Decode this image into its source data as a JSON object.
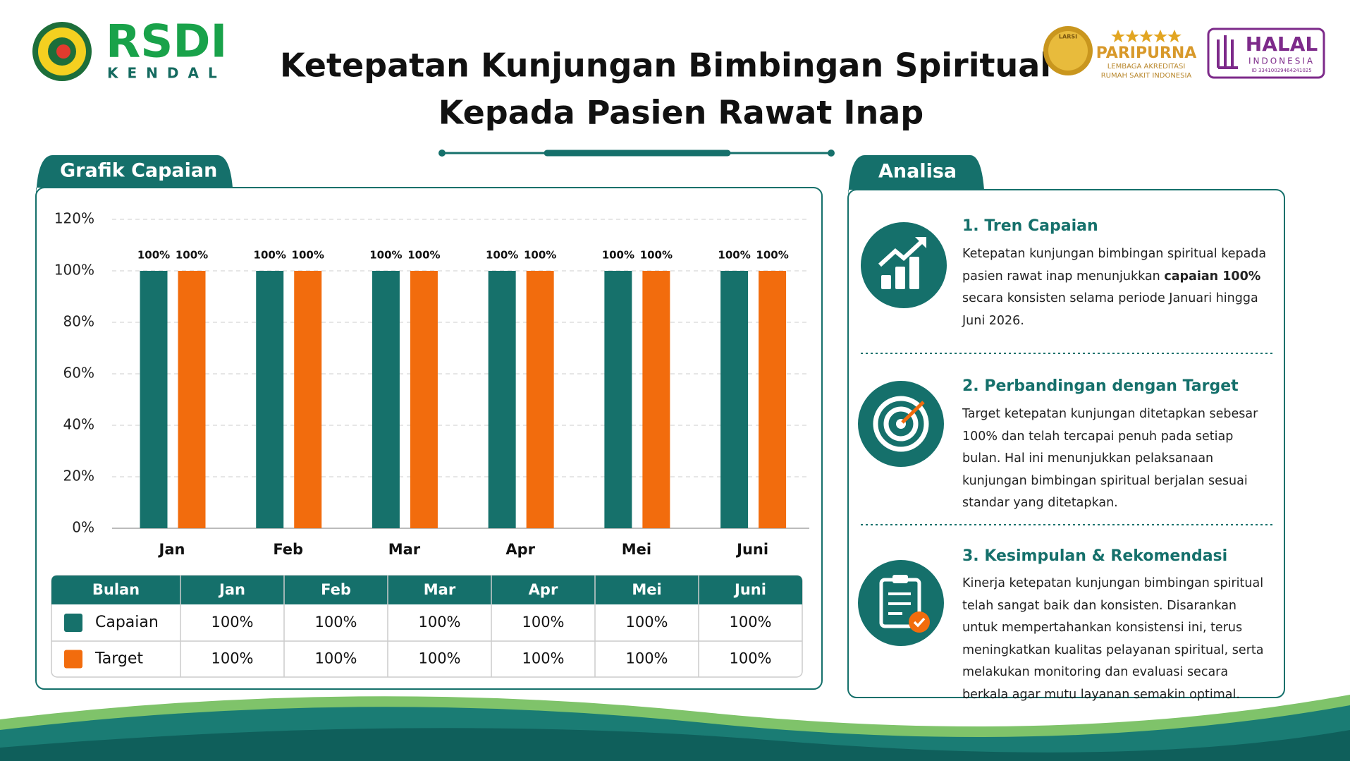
{
  "header": {
    "logo_name": "RSDI",
    "logo_city": "KENDAL",
    "title_lines": [
      "Ketepatan Kunjungan Bimbingan Spiritual",
      "Kepada Pasien Rawat Inap"
    ],
    "accreditation": {
      "seal": "LARSI",
      "level": "PARIPURNA",
      "org_lines": [
        "LEMBAGA AKREDITASI",
        "RUMAH SAKIT INDONESIA"
      ]
    },
    "halal": {
      "label": "HALAL",
      "country": "INDONESIA",
      "id": "ID 33410029464241025"
    }
  },
  "chart_data": {
    "type": "bar",
    "title": "Grafik Capaian",
    "categories": [
      "Jan",
      "Feb",
      "Mar",
      "Apr",
      "Mei",
      "Juni"
    ],
    "series": [
      {
        "name": "Capaian",
        "color": "#16716b",
        "values": [
          100,
          100,
          100,
          100,
          100,
          100
        ],
        "value_labels": [
          "100%",
          "100%",
          "100%",
          "100%",
          "100%",
          "100%"
        ]
      },
      {
        "name": "Target",
        "color": "#f26c0d",
        "values": [
          100,
          100,
          100,
          100,
          100,
          100
        ],
        "value_labels": [
          "100%",
          "100%",
          "100%",
          "100%",
          "100%",
          "100%"
        ]
      }
    ],
    "ylim": [
      0,
      120
    ],
    "yticks": [
      {
        "value": 0,
        "label": "0%"
      },
      {
        "value": 20,
        "label": "20%"
      },
      {
        "value": 40,
        "label": "40%"
      },
      {
        "value": 60,
        "label": "60%"
      },
      {
        "value": 80,
        "label": "80%"
      },
      {
        "value": 100,
        "label": "100%"
      },
      {
        "value": 120,
        "label": "120%"
      }
    ],
    "grid": true
  },
  "table": {
    "header": [
      "Bulan",
      "Jan",
      "Feb",
      "Mar",
      "Apr",
      "Mei",
      "Juni"
    ],
    "rows": [
      [
        "Capaian",
        "100%",
        "100%",
        "100%",
        "100%",
        "100%",
        "100%"
      ],
      [
        "Target",
        "100%",
        "100%",
        "100%",
        "100%",
        "100%",
        "100%"
      ]
    ]
  },
  "analysis": {
    "title": "Analisa",
    "items": [
      {
        "heading": "1. Tren Capaian",
        "body": [
          "Ketepatan kunjungan bimbingan spiritual kepada pasien rawat inap menunjukkan ",
          "capaian 100%",
          " secara konsisten selama periode Januari hingga Juni 2026."
        ]
      },
      {
        "heading": "2. Perbandingan dengan Target",
        "body": [
          "Target ketepatan kunjungan ditetapkan sebesar 100% dan telah tercapai penuh pada setiap bulan. Hal ini menunjukkan pelaksanaan kunjungan bimbingan spiritual berjalan sesuai standar yang ditetapkan."
        ]
      },
      {
        "heading": "3. Kesimpulan & Rekomendasi",
        "body": [
          "Kinerja ketepatan kunjungan bimbingan spiritual telah sangat baik dan konsisten. Disarankan untuk mempertahankan konsistensi ini, terus meningkatkan kualitas pelayanan spiritual, serta melakukan monitoring dan evaluasi secara berkala agar mutu layanan semakin optimal."
        ]
      }
    ]
  }
}
